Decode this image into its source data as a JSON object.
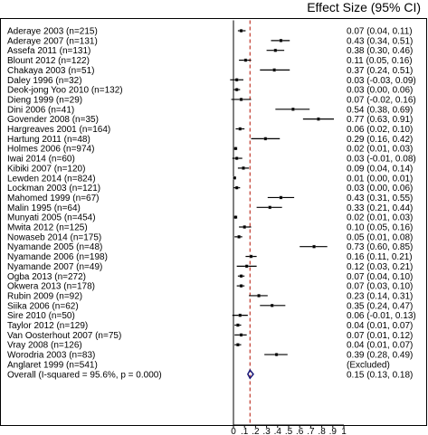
{
  "header": {
    "effect_label": "Effect Size (95% CI)"
  },
  "chart_data": {
    "type": "forest",
    "title": "",
    "effect_column_header": "Effect Size (95% CI)",
    "x_ticks": [
      "0",
      ".1",
      ".2",
      ".3",
      ".4",
      ".5",
      ".6",
      ".7",
      ".8",
      ".9",
      "1"
    ],
    "x_tick_values": [
      0,
      0.1,
      0.2,
      0.3,
      0.4,
      0.5,
      0.6,
      0.7,
      0.8,
      0.9,
      1
    ],
    "xlim": [
      0,
      1
    ],
    "null_line": 0,
    "overall_line": 0.15,
    "colors": {
      "marker": "#000000",
      "diamond": "#1a1a7a",
      "overall_line": "#c0392b"
    },
    "studies": [
      {
        "label": "Aderaye 2003 (n=215)",
        "est": 0.07,
        "lo": 0.04,
        "hi": 0.11,
        "text": "0.07 (0.04, 0.11)"
      },
      {
        "label": "Aderaye 2007 (n=131)",
        "est": 0.43,
        "lo": 0.34,
        "hi": 0.51,
        "text": "0.43 (0.34, 0.51)"
      },
      {
        "label": "Assefa 2011 (n=131)",
        "est": 0.38,
        "lo": 0.3,
        "hi": 0.46,
        "text": "0.38 (0.30, 0.46)"
      },
      {
        "label": "Blount 2012 (n=122)",
        "est": 0.11,
        "lo": 0.05,
        "hi": 0.16,
        "text": "0.11 (0.05, 0.16)"
      },
      {
        "label": "Chakaya 2003 (n=51)",
        "est": 0.37,
        "lo": 0.24,
        "hi": 0.51,
        "text": "0.37 (0.24, 0.51)"
      },
      {
        "label": "Daley 1996 (n=32)",
        "est": 0.03,
        "lo": -0.03,
        "hi": 0.09,
        "text": "0.03 (-0.03, 0.09)"
      },
      {
        "label": "Deok-jong Yoo 2010 (n=132)",
        "est": 0.03,
        "lo": 0.0,
        "hi": 0.06,
        "text": "0.03 (0.00, 0.06)"
      },
      {
        "label": "Dieng 1999 (n=29)",
        "est": 0.07,
        "lo": -0.02,
        "hi": 0.16,
        "text": "0.07 (-0.02, 0.16)"
      },
      {
        "label": "Dini 2006 (n=41)",
        "est": 0.54,
        "lo": 0.38,
        "hi": 0.69,
        "text": "0.54 (0.38, 0.69)"
      },
      {
        "label": "Govender 2008 (n=35)",
        "est": 0.77,
        "lo": 0.63,
        "hi": 0.91,
        "text": "0.77 (0.63, 0.91)"
      },
      {
        "label": "Hargreaves 2001 (n=164)",
        "est": 0.06,
        "lo": 0.02,
        "hi": 0.1,
        "text": "0.06 (0.02, 0.10)"
      },
      {
        "label": "Hartung 2011 (n=48)",
        "est": 0.29,
        "lo": 0.16,
        "hi": 0.42,
        "text": "0.29 (0.16, 0.42)"
      },
      {
        "label": "Holmes 2006 (n=974)",
        "est": 0.02,
        "lo": 0.01,
        "hi": 0.03,
        "text": "0.02 (0.01, 0.03)"
      },
      {
        "label": "Iwai 2014 (n=60)",
        "est": 0.03,
        "lo": -0.01,
        "hi": 0.08,
        "text": "0.03 (-0.01, 0.08)"
      },
      {
        "label": "Kibiki 2007 (n=120)",
        "est": 0.09,
        "lo": 0.04,
        "hi": 0.14,
        "text": "0.09 (0.04, 0.14)"
      },
      {
        "label": "Lewden 2014 (n=824)",
        "est": 0.01,
        "lo": 0.0,
        "hi": 0.01,
        "text": "0.01 (0.00, 0.01)"
      },
      {
        "label": "Lockman 2003 (n=121)",
        "est": 0.03,
        "lo": 0.0,
        "hi": 0.06,
        "text": "0.03 (0.00, 0.06)"
      },
      {
        "label": "Mahomed 1999 (n=67)",
        "est": 0.43,
        "lo": 0.31,
        "hi": 0.55,
        "text": "0.43 (0.31, 0.55)"
      },
      {
        "label": "Malin 1995 (n=64)",
        "est": 0.33,
        "lo": 0.21,
        "hi": 0.44,
        "text": "0.33 (0.21, 0.44)"
      },
      {
        "label": "Munyati 2005 (n=454)",
        "est": 0.02,
        "lo": 0.01,
        "hi": 0.03,
        "text": "0.02 (0.01, 0.03)"
      },
      {
        "label": "Mwita 2012 (n=125)",
        "est": 0.1,
        "lo": 0.05,
        "hi": 0.16,
        "text": "0.10 (0.05, 0.16)"
      },
      {
        "label": "Nowaseb 2014 (n=175)",
        "est": 0.05,
        "lo": 0.01,
        "hi": 0.08,
        "text": "0.05 (0.01, 0.08)"
      },
      {
        "label": "Nyamande 2005 (n=48)",
        "est": 0.73,
        "lo": 0.6,
        "hi": 0.85,
        "text": "0.73 (0.60, 0.85)"
      },
      {
        "label": "Nyamande 2006 (n=198)",
        "est": 0.16,
        "lo": 0.11,
        "hi": 0.21,
        "text": "0.16 (0.11, 0.21)"
      },
      {
        "label": "Nyamande 2007 (n=49)",
        "est": 0.12,
        "lo": 0.03,
        "hi": 0.21,
        "text": "0.12 (0.03, 0.21)"
      },
      {
        "label": "Ogba 2013 (n=272)",
        "est": 0.07,
        "lo": 0.04,
        "hi": 0.1,
        "text": "0.07 (0.04, 0.10)"
      },
      {
        "label": "Okwera 2013 (n=178)",
        "est": 0.07,
        "lo": 0.03,
        "hi": 0.1,
        "text": "0.07 (0.03, 0.10)"
      },
      {
        "label": "Rubin 2009 (n=92)",
        "est": 0.23,
        "lo": 0.14,
        "hi": 0.31,
        "text": "0.23 (0.14, 0.31)"
      },
      {
        "label": "Siika 2006 (n=62)",
        "est": 0.35,
        "lo": 0.24,
        "hi": 0.47,
        "text": "0.35 (0.24, 0.47)"
      },
      {
        "label": "Sire 2010 (n=50)",
        "est": 0.06,
        "lo": -0.01,
        "hi": 0.13,
        "text": "0.06 (-0.01, 0.13)"
      },
      {
        "label": "Taylor 2012 (n=129)",
        "est": 0.04,
        "lo": 0.01,
        "hi": 0.07,
        "text": "0.04 (0.01, 0.07)"
      },
      {
        "label": "Van Oosterhout 2007 (n=75)",
        "est": 0.07,
        "lo": 0.01,
        "hi": 0.12,
        "text": "0.07 (0.01, 0.12)"
      },
      {
        "label": "Vray 2008 (n=126)",
        "est": 0.04,
        "lo": 0.01,
        "hi": 0.07,
        "text": "0.04 (0.01, 0.07)"
      },
      {
        "label": "Worodria 2003 (n=83)",
        "est": 0.39,
        "lo": 0.28,
        "hi": 0.49,
        "text": "0.39 (0.28, 0.49)"
      },
      {
        "label": "Anglaret 1999 (n=541)",
        "est": null,
        "lo": null,
        "hi": null,
        "text": "(Excluded)"
      }
    ],
    "overall": {
      "label": "Overall  (I-squared = 95.6%, p = 0.000)",
      "est": 0.15,
      "lo": 0.13,
      "hi": 0.18,
      "text": "0.15 (0.13, 0.18)"
    }
  }
}
